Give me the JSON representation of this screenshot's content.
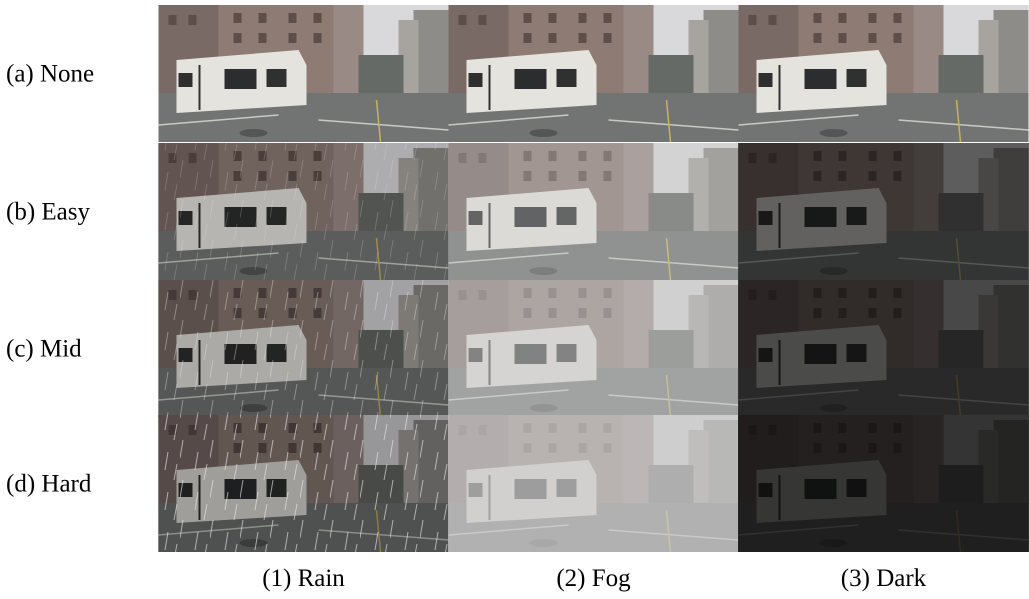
{
  "row_labels": [
    "(a) None",
    "(b) Easy",
    "(c) Mid",
    "(d) Hard"
  ],
  "column_labels": [
    "(1) Rain",
    "(2) Fog",
    "(3) Dark"
  ]
}
